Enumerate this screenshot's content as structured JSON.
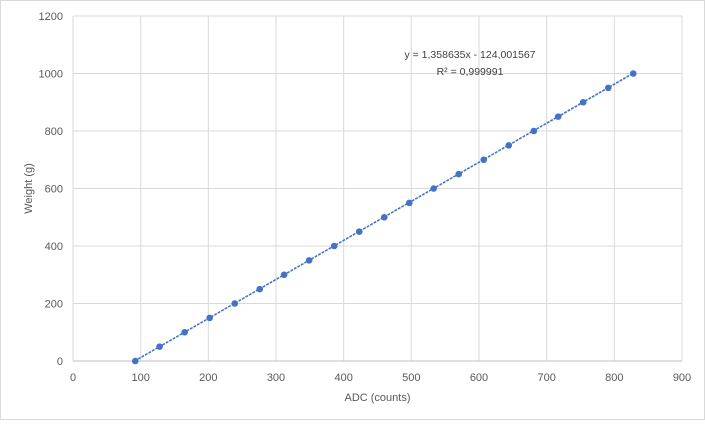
{
  "chart_data": {
    "type": "scatter",
    "title": "",
    "xlabel": "ADC (counts)",
    "ylabel": "Weight (g)",
    "xlim": [
      0,
      900
    ],
    "ylim": [
      0,
      1200
    ],
    "x_ticks": [
      0,
      100,
      200,
      300,
      400,
      500,
      600,
      700,
      800,
      900
    ],
    "y_ticks": [
      0,
      200,
      400,
      600,
      800,
      1000,
      1200
    ],
    "grid": true,
    "legend": "none",
    "series": [
      {
        "color": "#4472c4",
        "points": [
          {
            "x": 92,
            "y": 0
          },
          {
            "x": 128,
            "y": 50
          },
          {
            "x": 165,
            "y": 100
          },
          {
            "x": 202,
            "y": 150
          },
          {
            "x": 239,
            "y": 200
          },
          {
            "x": 276,
            "y": 250
          },
          {
            "x": 312,
            "y": 300
          },
          {
            "x": 349,
            "y": 350
          },
          {
            "x": 386,
            "y": 400
          },
          {
            "x": 423,
            "y": 450
          },
          {
            "x": 460,
            "y": 500
          },
          {
            "x": 497,
            "y": 550
          },
          {
            "x": 533,
            "y": 600
          },
          {
            "x": 570,
            "y": 650
          },
          {
            "x": 607,
            "y": 700
          },
          {
            "x": 644,
            "y": 750
          },
          {
            "x": 681,
            "y": 800
          },
          {
            "x": 717,
            "y": 850
          },
          {
            "x": 754,
            "y": 900
          },
          {
            "x": 791,
            "y": 950
          },
          {
            "x": 828,
            "y": 1000
          }
        ]
      }
    ],
    "trendline": {
      "type": "linear",
      "style": "dotted",
      "slope": 1.358635,
      "intercept": -124.001567,
      "equation": "y = 1,358635x - 124,001567",
      "r_squared": "R² = 0,999991"
    }
  }
}
